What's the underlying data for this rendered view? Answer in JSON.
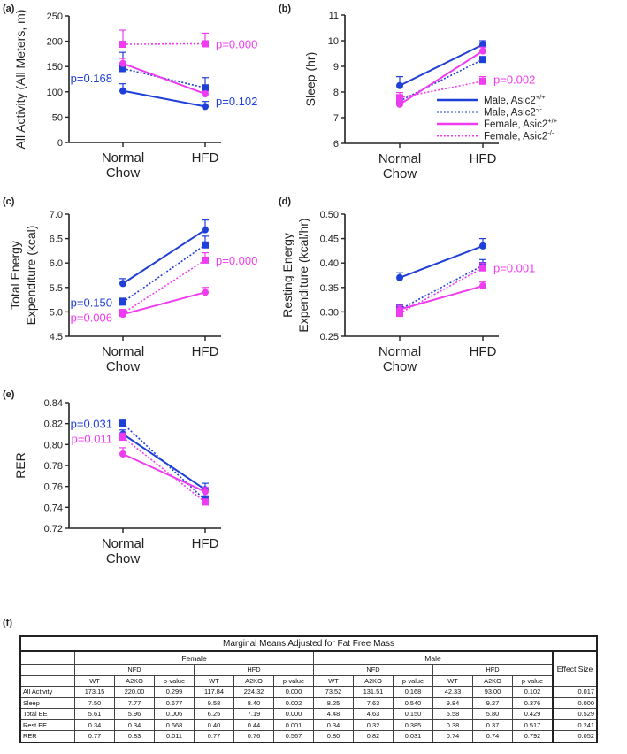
{
  "panel_labels": [
    "(a)",
    "(b)",
    "(c)",
    "(d)",
    "(e)",
    "(f)"
  ],
  "colors": {
    "male": "#1f3fd9",
    "female": "#f03cf0"
  },
  "legend": [
    {
      "label": "Male, Asic2",
      "sup": "+/+",
      "sex": "male",
      "style": "solid"
    },
    {
      "label": "Male, Asic2",
      "sup": "-/-",
      "sex": "male",
      "style": "dotted"
    },
    {
      "label": "Female, Asic2",
      "sup": "+/+",
      "sex": "female",
      "style": "solid"
    },
    {
      "label": "Female, Asic2",
      "sup": "-/-",
      "sex": "female",
      "style": "dotted"
    }
  ],
  "chart_data": [
    {
      "type": "line",
      "panel": "(a)",
      "ylabel": "All Activity (All Meters, m)",
      "categories": [
        "Normal Chow",
        "HFD"
      ],
      "ylim": [
        0,
        250
      ],
      "yticks": [
        "0",
        "50",
        "100",
        "150",
        "200",
        "250"
      ],
      "series": [
        {
          "name": "Male, Asic2+/+",
          "values": [
            102,
            71
          ],
          "errors": [
            14,
            10
          ]
        },
        {
          "name": "Male, Asic2-/-",
          "values": [
            146,
            108
          ],
          "errors": [
            32,
            20
          ]
        },
        {
          "name": "Female, Asic2+/+",
          "values": [
            156,
            96
          ],
          "errors": [
            10,
            5
          ]
        },
        {
          "name": "Female, Asic2-/-",
          "values": [
            194,
            195
          ],
          "errors": [
            28,
            21
          ]
        }
      ],
      "annotations": [
        {
          "text": "p=0.000",
          "sex": "female",
          "cat": 1,
          "y": 195,
          "side": "right"
        },
        {
          "text": "p=0.168",
          "sex": "male",
          "cat": 0,
          "y": 128,
          "side": "left"
        },
        {
          "text": "p=0.102",
          "sex": "male",
          "cat": 1,
          "y": 82,
          "side": "right"
        }
      ]
    },
    {
      "type": "line",
      "panel": "(b)",
      "ylabel": "Sleep (hr)",
      "categories": [
        "Normal Chow",
        "HFD"
      ],
      "ylim": [
        6,
        11
      ],
      "yticks": [
        "6",
        "7",
        "8",
        "9",
        "10",
        "11"
      ],
      "series": [
        {
          "name": "Male, Asic2+/+",
          "values": [
            8.25,
            9.85
          ],
          "errors": [
            0.35,
            0.15
          ]
        },
        {
          "name": "Male, Asic2-/-",
          "values": [
            7.65,
            9.27
          ],
          "errors": [
            0.15,
            0.1
          ]
        },
        {
          "name": "Female, Asic2+/+",
          "values": [
            7.52,
            9.6
          ],
          "errors": [
            0.1,
            0.15
          ]
        },
        {
          "name": "Female, Asic2-/-",
          "values": [
            7.78,
            8.42
          ],
          "errors": [
            0.2,
            0.18
          ]
        }
      ],
      "annotations": [
        {
          "text": "p=0.002",
          "sex": "female",
          "cat": 1,
          "y": 8.5,
          "side": "right"
        }
      ]
    },
    {
      "type": "line",
      "panel": "(c)",
      "ylabel": "Total Energy|Expenditure (kcal)",
      "categories": [
        "Normal Chow",
        "HFD"
      ],
      "ylim": [
        4.5,
        7.0
      ],
      "yticks": [
        "4.5",
        "5.0",
        "5.5",
        "6.0",
        "6.5",
        "7.0"
      ],
      "series": [
        {
          "name": "Male, Asic2+/+",
          "values": [
            5.58,
            6.68
          ],
          "errors": [
            0.1,
            0.2
          ]
        },
        {
          "name": "Male, Asic2-/-",
          "values": [
            5.2,
            6.37
          ],
          "errors": [
            0.08,
            0.18
          ]
        },
        {
          "name": "Female, Asic2+/+",
          "values": [
            4.95,
            5.4
          ],
          "errors": [
            0.05,
            0.1
          ]
        },
        {
          "name": "Female, Asic2-/-",
          "values": [
            4.97,
            6.06
          ],
          "errors": [
            0.08,
            0.15
          ]
        }
      ],
      "annotations": [
        {
          "text": "p=0.150",
          "sex": "male",
          "cat": 0,
          "y": 5.2,
          "side": "left"
        },
        {
          "text": "p=0.006",
          "sex": "female",
          "cat": 0,
          "y": 4.92,
          "side": "left"
        },
        {
          "text": "p=0.000",
          "sex": "female",
          "cat": 1,
          "y": 6.06,
          "side": "right"
        }
      ]
    },
    {
      "type": "line",
      "panel": "(d)",
      "ylabel": "Resting Energy|Expenditure (kcal/hr)",
      "categories": [
        "Normal Chow",
        "HFD"
      ],
      "ylim": [
        0.25,
        0.5
      ],
      "yticks": [
        "0.25",
        "0.30",
        "0.35",
        "0.40",
        "0.45",
        "0.50"
      ],
      "series": [
        {
          "name": "Male, Asic2+/+",
          "values": [
            0.37,
            0.435
          ],
          "errors": [
            0.01,
            0.015
          ]
        },
        {
          "name": "Male, Asic2-/-",
          "values": [
            0.305,
            0.395
          ],
          "errors": [
            0.01,
            0.012
          ]
        },
        {
          "name": "Female, Asic2+/+",
          "values": [
            0.305,
            0.353
          ],
          "errors": [
            0.008,
            0.008
          ]
        },
        {
          "name": "Female, Asic2-/-",
          "values": [
            0.297,
            0.39
          ],
          "errors": [
            0.01,
            0.01
          ]
        }
      ],
      "annotations": [
        {
          "text": "p=0.001",
          "sex": "female",
          "cat": 1,
          "y": 0.39,
          "side": "right"
        }
      ]
    },
    {
      "type": "line",
      "panel": "(e)",
      "ylabel": "RER",
      "categories": [
        "Normal Chow",
        "HFD"
      ],
      "ylim": [
        0.72,
        0.84
      ],
      "yticks": [
        "0.72",
        "0.74",
        "0.76",
        "0.78",
        "0.80",
        "0.82",
        "0.84"
      ],
      "series": [
        {
          "name": "Male, Asic2+/+",
          "values": [
            0.81,
            0.757
          ],
          "errors": [
            0.004,
            0.006
          ]
        },
        {
          "name": "Male, Asic2-/-",
          "values": [
            0.82,
            0.747
          ],
          "errors": [
            0.004,
            0.004
          ]
        },
        {
          "name": "Female, Asic2+/+",
          "values": [
            0.791,
            0.755
          ],
          "errors": [
            0.006,
            0.004
          ]
        },
        {
          "name": "Female, Asic2-/-",
          "values": [
            0.807,
            0.745
          ],
          "errors": [
            0.004,
            0.003
          ]
        }
      ],
      "annotations": [
        {
          "text": "p=0.031",
          "sex": "male",
          "cat": 0,
          "y": 0.82,
          "side": "left"
        },
        {
          "text": "p=0.011",
          "sex": "female",
          "cat": 0,
          "y": 0.806,
          "side": "left"
        }
      ]
    },
    {
      "type": "table",
      "panel": "(f)",
      "title": "Marginal Means Adjusted for Fat Free Mass",
      "groups": [
        "Female",
        "Male"
      ],
      "diets": [
        "NFD",
        "HFD",
        "NFD",
        "HFD"
      ],
      "subcols": [
        "WT",
        "A2KO",
        "p-value"
      ],
      "effect_header": "Effect Size",
      "rows": [
        {
          "label": "All Activity",
          "values": [
            "173.15",
            "220.00",
            "0.299",
            "117.84",
            "224.32",
            "0.000",
            "73.52",
            "131.51",
            "0.168",
            "42.33",
            "93.00",
            "0.102"
          ],
          "effect": "0.017"
        },
        {
          "label": "Sleep",
          "values": [
            "7.50",
            "7.77",
            "0.677",
            "9.58",
            "8.40",
            "0.002",
            "8.25",
            "7.63",
            "0.540",
            "9.84",
            "9.27",
            "0.376"
          ],
          "effect": "0.000"
        },
        {
          "label": "Total EE",
          "values": [
            "5.61",
            "5.96",
            "0.006",
            "6.25",
            "7.19",
            "0.000",
            "4.48",
            "4.63",
            "0.150",
            "5.58",
            "5.80",
            "0.429"
          ],
          "effect": "0.529"
        },
        {
          "label": "Rest EE",
          "values": [
            "0.34",
            "0.34",
            "0.668",
            "0.40",
            "0.44",
            "0.001",
            "0.34",
            "0.32",
            "0.385",
            "0.38",
            "0.37",
            "0.517"
          ],
          "effect": "0.241"
        },
        {
          "label": "RER",
          "values": [
            "0.77",
            "0.83",
            "0.011",
            "0.77",
            "0.76",
            "0.567",
            "0.80",
            "0.82",
            "0.031",
            "0.74",
            "0.74",
            "0.792"
          ],
          "effect": "0.052"
        }
      ]
    }
  ]
}
